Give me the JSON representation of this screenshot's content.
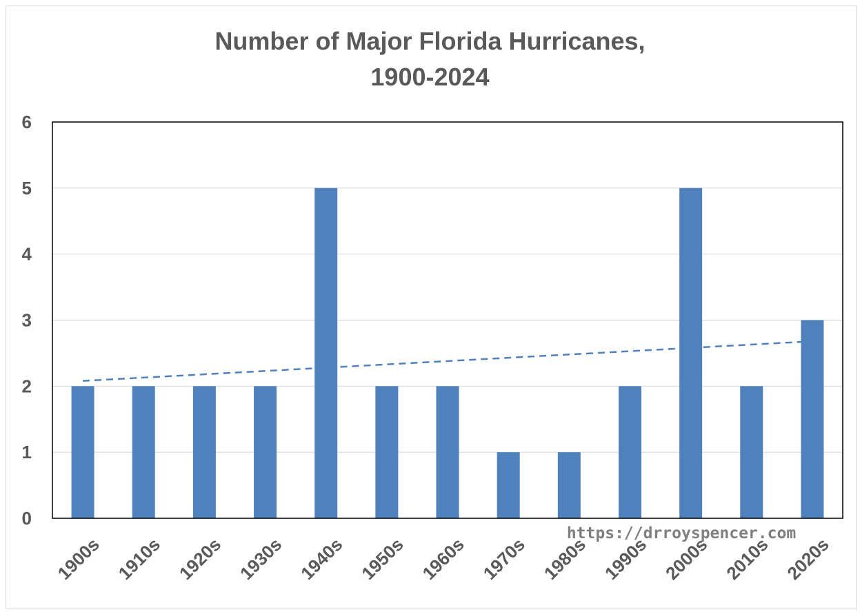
{
  "chart_data": {
    "type": "bar",
    "title_lines": [
      "Number of Major Florida Hurricanes,",
      "1900-2024"
    ],
    "xlabel": "",
    "ylabel": "",
    "categories": [
      "1900s",
      "1910s",
      "1920s",
      "1930s",
      "1940s",
      "1950s",
      "1960s",
      "1970s",
      "1980s",
      "1990s",
      "2000s",
      "2010s",
      "2020s"
    ],
    "values": [
      2,
      2,
      2,
      2,
      5,
      2,
      2,
      1,
      1,
      2,
      5,
      2,
      3
    ],
    "ylim": [
      0,
      6
    ],
    "yticks": [
      0,
      1,
      2,
      3,
      4,
      5,
      6
    ],
    "grid": true,
    "bar_color": "#4f81bd",
    "trendline": {
      "style": "dashed",
      "color": "#4f81bd",
      "start_value": 2.08,
      "end_value": 2.68
    },
    "watermark": "https://drroyspencer.com"
  }
}
